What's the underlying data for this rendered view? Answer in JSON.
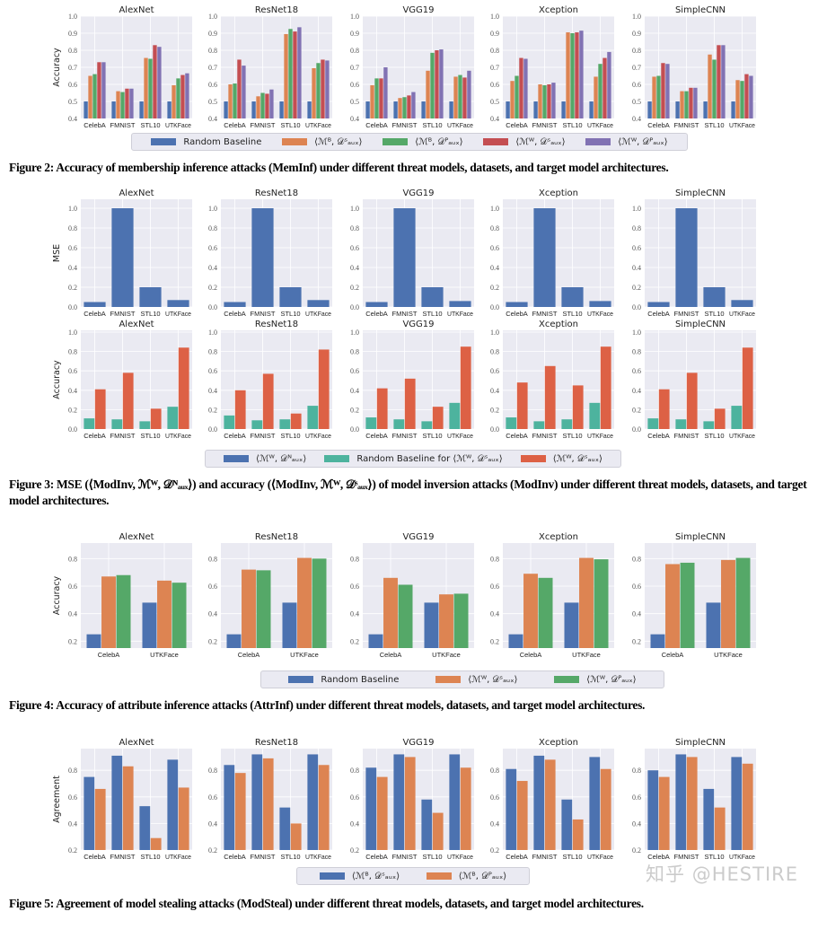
{
  "palette": {
    "blue": "#4c72b0",
    "orange": "#dd8452",
    "green": "#55a868",
    "red": "#c44e52",
    "purple": "#8172b3",
    "teal": "#4db39e",
    "vermilion": "#dd6145",
    "background": "#eaeaf2"
  },
  "captions": {
    "fig2": "Figure 2: Accuracy of membership inference attacks (MemInf) under different threat models, datasets, and target model architectures.",
    "fig3": "Figure 3: MSE (⟨ModInv, ℳᵂ, 𝒟ᴺₐᵤₓ⟩) and accuracy (⟨ModInv, ℳᵂ, 𝒟ˢₐᵤₓ⟩) of model inversion attacks (ModInv) under different threat models, datasets, and target model architectures.",
    "fig4": "Figure 4: Accuracy of attribute inference attacks (AttrInf) under different threat models, datasets, and target model architectures.",
    "fig5": "Figure 5: Agreement of model stealing attacks (ModSteal) under different threat models, datasets, and target model architectures."
  },
  "legends": {
    "fig2": [
      {
        "label": "Random Baseline",
        "color": "#4c72b0"
      },
      {
        "label": "⟨ℳᴮ, 𝒟ˢₐᵤₓ⟩",
        "color": "#dd8452"
      },
      {
        "label": "⟨ℳᴮ, 𝒟ᴾₐᵤₓ⟩",
        "color": "#55a868"
      },
      {
        "label": "⟨ℳᵂ, 𝒟ˢₐᵤₓ⟩",
        "color": "#c44e52"
      },
      {
        "label": "⟨ℳᵂ, 𝒟ᴾₐᵤₓ⟩",
        "color": "#8172b3"
      }
    ],
    "fig3": [
      {
        "label": "⟨ℳᵂ, 𝒟ᴺₐᵤₓ⟩",
        "color": "#4c72b0"
      },
      {
        "label": "Random Baseline for ⟨ℳᵂ, 𝒟ˢₐᵤₓ⟩",
        "color": "#4db39e"
      },
      {
        "label": "⟨ℳᵂ, 𝒟ˢₐᵤₓ⟩",
        "color": "#dd6145"
      }
    ],
    "fig4": [
      {
        "label": "Random Baseline",
        "color": "#4c72b0"
      },
      {
        "label": "⟨ℳᵂ, 𝒟ˢₐᵤₓ⟩",
        "color": "#dd8452"
      },
      {
        "label": "⟨ℳᵂ, 𝒟ᴾₐᵤₓ⟩",
        "color": "#55a868"
      }
    ],
    "fig5": [
      {
        "label": "⟨ℳᴮ, 𝒟ˢₐᵤₓ⟩",
        "color": "#4c72b0"
      },
      {
        "label": "⟨ℳᴮ, 𝒟ᴾₐᵤₓ⟩",
        "color": "#dd8452"
      }
    ]
  },
  "watermark": "知乎 @HESTIRE",
  "chart_data": [
    {
      "id": "fig2",
      "type": "bar",
      "ylabel": "Accuracy",
      "ylim": [
        0.4,
        1.0
      ],
      "yticks": [
        0.4,
        0.5,
        0.6,
        0.7,
        0.8,
        0.9,
        1.0
      ],
      "grid": true,
      "categories": [
        "CelebA",
        "FMNIST",
        "STL10",
        "UTKFace"
      ],
      "series_colors": [
        "#4c72b0",
        "#dd8452",
        "#55a868",
        "#c44e52",
        "#8172b3"
      ],
      "series_names": [
        "Random Baseline",
        "⟨ℳᴮ, 𝒟ˢₐᵤₓ⟩",
        "⟨ℳᴮ, 𝒟ᴾₐᵤₓ⟩",
        "⟨ℳᵂ, 𝒟ˢₐᵤₓ⟩",
        "⟨ℳᵂ, 𝒟ᴾₐᵤₓ⟩"
      ],
      "panels": [
        {
          "title": "AlexNet",
          "values": [
            [
              0.5,
              0.5,
              0.5,
              0.5
            ],
            [
              0.65,
              0.56,
              0.755,
              0.595
            ],
            [
              0.66,
              0.555,
              0.75,
              0.635
            ],
            [
              0.73,
              0.575,
              0.83,
              0.655
            ],
            [
              0.73,
              0.575,
              0.82,
              0.665
            ]
          ]
        },
        {
          "title": "ResNet18",
          "values": [
            [
              0.5,
              0.5,
              0.5,
              0.5
            ],
            [
              0.6,
              0.53,
              0.895,
              0.695
            ],
            [
              0.605,
              0.55,
              0.925,
              0.725
            ],
            [
              0.745,
              0.545,
              0.91,
              0.745
            ],
            [
              0.71,
              0.57,
              0.935,
              0.74
            ]
          ]
        },
        {
          "title": "VGG19",
          "values": [
            [
              0.5,
              0.5,
              0.5,
              0.5
            ],
            [
              0.595,
              0.52,
              0.68,
              0.645
            ],
            [
              0.635,
              0.525,
              0.785,
              0.655
            ],
            [
              0.635,
              0.535,
              0.8,
              0.64
            ],
            [
              0.7,
              0.555,
              0.805,
              0.68
            ]
          ]
        },
        {
          "title": "Xception",
          "values": [
            [
              0.5,
              0.5,
              0.5,
              0.5
            ],
            [
              0.62,
              0.6,
              0.905,
              0.645
            ],
            [
              0.65,
              0.595,
              0.9,
              0.72
            ],
            [
              0.755,
              0.6,
              0.905,
              0.755
            ],
            [
              0.75,
              0.61,
              0.915,
              0.79
            ]
          ]
        },
        {
          "title": "SimpleCNN",
          "values": [
            [
              0.5,
              0.5,
              0.5,
              0.5
            ],
            [
              0.645,
              0.56,
              0.775,
              0.625
            ],
            [
              0.65,
              0.56,
              0.745,
              0.62
            ],
            [
              0.725,
              0.58,
              0.83,
              0.66
            ],
            [
              0.72,
              0.58,
              0.83,
              0.65
            ]
          ]
        }
      ]
    },
    {
      "id": "fig3-mse",
      "type": "bar",
      "ylabel": "MSE",
      "ylim": [
        0,
        1.0
      ],
      "yticks": [
        0.0,
        0.2,
        0.4,
        0.6,
        0.8,
        1.0
      ],
      "grid": true,
      "categories": [
        "CelebA",
        "FMNIST",
        "STL10",
        "UTKFace"
      ],
      "series_colors": [
        "#4c72b0"
      ],
      "series_names": [
        "⟨ℳᵂ, 𝒟ᴺₐᵤₓ⟩"
      ],
      "panels": [
        {
          "title": "AlexNet",
          "values": [
            [
              0.05,
              1.0,
              0.2,
              0.07
            ]
          ]
        },
        {
          "title": "ResNet18",
          "values": [
            [
              0.05,
              1.0,
              0.2,
              0.07
            ]
          ]
        },
        {
          "title": "VGG19",
          "values": [
            [
              0.05,
              1.0,
              0.2,
              0.06
            ]
          ]
        },
        {
          "title": "Xception",
          "values": [
            [
              0.05,
              1.0,
              0.2,
              0.06
            ]
          ]
        },
        {
          "title": "SimpleCNN",
          "values": [
            [
              0.05,
              1.0,
              0.2,
              0.07
            ]
          ]
        }
      ]
    },
    {
      "id": "fig3-acc",
      "type": "bar",
      "ylabel": "Accuracy",
      "ylim": [
        0,
        1.0
      ],
      "yticks": [
        0.0,
        0.2,
        0.4,
        0.6,
        0.8,
        1.0
      ],
      "grid": true,
      "categories": [
        "CelebA",
        "FMNIST",
        "STL10",
        "UTKFace"
      ],
      "series_colors": [
        "#4db39e",
        "#dd6145"
      ],
      "series_names": [
        "Random Baseline for ⟨ℳᵂ, 𝒟ˢₐᵤₓ⟩",
        "⟨ℳᵂ, 𝒟ˢₐᵤₓ⟩"
      ],
      "panels": [
        {
          "title": "AlexNet",
          "values": [
            [
              0.11,
              0.1,
              0.08,
              0.23
            ],
            [
              0.41,
              0.58,
              0.21,
              0.84
            ]
          ]
        },
        {
          "title": "ResNet18",
          "values": [
            [
              0.14,
              0.09,
              0.1,
              0.24
            ],
            [
              0.4,
              0.57,
              0.16,
              0.82
            ]
          ]
        },
        {
          "title": "VGG19",
          "values": [
            [
              0.12,
              0.1,
              0.08,
              0.27
            ],
            [
              0.42,
              0.52,
              0.23,
              0.85
            ]
          ]
        },
        {
          "title": "Xception",
          "values": [
            [
              0.12,
              0.08,
              0.1,
              0.27
            ],
            [
              0.48,
              0.65,
              0.45,
              0.85
            ]
          ]
        },
        {
          "title": "SimpleCNN",
          "values": [
            [
              0.11,
              0.1,
              0.08,
              0.24
            ],
            [
              0.41,
              0.58,
              0.21,
              0.84
            ]
          ]
        }
      ]
    },
    {
      "id": "fig4",
      "type": "bar",
      "ylabel": "Accuracy",
      "ylim": [
        0.15,
        0.9
      ],
      "yticks": [
        0.2,
        0.4,
        0.6,
        0.8
      ],
      "grid": true,
      "categories": [
        "CelebA",
        "UTKFace"
      ],
      "series_colors": [
        "#4c72b0",
        "#dd8452",
        "#55a868"
      ],
      "series_names": [
        "Random Baseline",
        "⟨ℳᵂ, 𝒟ˢₐᵤₓ⟩",
        "⟨ℳᵂ, 𝒟ᴾₐᵤₓ⟩"
      ],
      "panels": [
        {
          "title": "AlexNet",
          "values": [
            [
              0.25,
              0.48
            ],
            [
              0.67,
              0.64
            ],
            [
              0.68,
              0.625
            ]
          ]
        },
        {
          "title": "ResNet18",
          "values": [
            [
              0.25,
              0.48
            ],
            [
              0.72,
              0.805
            ],
            [
              0.715,
              0.8
            ]
          ]
        },
        {
          "title": "VGG19",
          "values": [
            [
              0.25,
              0.48
            ],
            [
              0.66,
              0.54
            ],
            [
              0.61,
              0.545
            ]
          ]
        },
        {
          "title": "Xception",
          "values": [
            [
              0.25,
              0.48
            ],
            [
              0.69,
              0.805
            ],
            [
              0.66,
              0.795
            ]
          ]
        },
        {
          "title": "SimpleCNN",
          "values": [
            [
              0.25,
              0.48
            ],
            [
              0.76,
              0.79
            ],
            [
              0.77,
              0.805
            ]
          ]
        }
      ]
    },
    {
      "id": "fig5",
      "type": "bar",
      "ylabel": "Agreement",
      "ylim": [
        0.2,
        0.95
      ],
      "yticks": [
        0.2,
        0.4,
        0.6,
        0.8
      ],
      "grid": true,
      "categories": [
        "CelebA",
        "FMNIST",
        "STL10",
        "UTKFace"
      ],
      "series_colors": [
        "#4c72b0",
        "#dd8452"
      ],
      "series_names": [
        "⟨ℳᴮ, 𝒟ˢₐᵤₓ⟩",
        "⟨ℳᴮ, 𝒟ᴾₐᵤₓ⟩"
      ],
      "panels": [
        {
          "title": "AlexNet",
          "values": [
            [
              0.75,
              0.91,
              0.53,
              0.88
            ],
            [
              0.66,
              0.83,
              0.29,
              0.67
            ]
          ]
        },
        {
          "title": "ResNet18",
          "values": [
            [
              0.84,
              0.92,
              0.52,
              0.92
            ],
            [
              0.78,
              0.89,
              0.4,
              0.84
            ]
          ]
        },
        {
          "title": "VGG19",
          "values": [
            [
              0.82,
              0.92,
              0.58,
              0.92
            ],
            [
              0.75,
              0.9,
              0.48,
              0.82
            ]
          ]
        },
        {
          "title": "Xception",
          "values": [
            [
              0.81,
              0.91,
              0.58,
              0.9
            ],
            [
              0.72,
              0.88,
              0.43,
              0.81
            ]
          ]
        },
        {
          "title": "SimpleCNN",
          "values": [
            [
              0.8,
              0.92,
              0.66,
              0.9
            ],
            [
              0.75,
              0.9,
              0.52,
              0.85
            ]
          ]
        }
      ]
    }
  ]
}
